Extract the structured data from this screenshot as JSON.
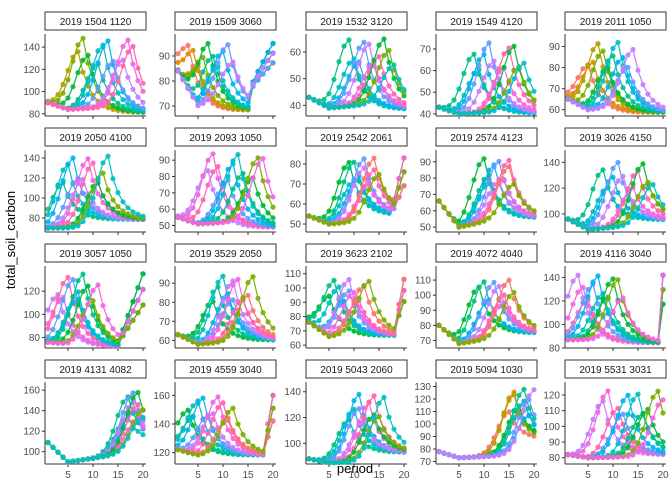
{
  "chart_data": {
    "type": "line",
    "xlabel": "period",
    "ylabel": "total_soil_carbon",
    "x_ticks": [
      5,
      10,
      15,
      20
    ],
    "x_range": [
      1,
      20
    ],
    "colors": [
      "#F8766D",
      "#DE8C00",
      "#B79F00",
      "#7CAE00",
      "#00BA38",
      "#00C08B",
      "#00BFC4",
      "#00B4F0",
      "#619CFF",
      "#C77CFF",
      "#F564E3",
      "#FF64B0"
    ],
    "panels": [
      {
        "title": "2019 1504 1120",
        "ylim": [
          78,
          150
        ],
        "yticks": [
          80,
          100,
          120,
          140
        ],
        "base": 90,
        "dip": 84,
        "amp": 148,
        "start": 7,
        "end": 18,
        "tail": 80,
        "pal": "warmcool",
        "recur": 0
      },
      {
        "title": "2019 1509 3060",
        "ylim": [
          66,
          98
        ],
        "yticks": [
          70,
          80,
          90
        ],
        "base": 84,
        "dip": 70,
        "amp": 95,
        "start": 3,
        "end": 12,
        "tail": 67,
        "pal": "warm",
        "recur": 16
      },
      {
        "title": "2019 1532 3120",
        "ylim": [
          36,
          66
        ],
        "yticks": [
          40,
          50,
          60
        ],
        "base": 43,
        "dip": 39,
        "amp": 65,
        "start": 9,
        "end": 18,
        "tail": 38,
        "pal": "cool",
        "recur": 0
      },
      {
        "title": "2019 1549 4120",
        "ylim": [
          39,
          76
        ],
        "yticks": [
          40,
          50,
          60,
          70
        ],
        "base": 43,
        "dip": 40,
        "amp": 73,
        "start": 8,
        "end": 18,
        "tail": 40,
        "pal": "cool",
        "recur": 0
      },
      {
        "title": "2019 2011 1050",
        "ylim": [
          57,
          95
        ],
        "yticks": [
          60,
          70,
          80,
          90
        ],
        "base": 65,
        "dip": 60,
        "amp": 92,
        "start": 5,
        "end": 14,
        "tail": 58,
        "pal": "warm",
        "recur": 0
      },
      {
        "title": "2019 2050 4100",
        "ylim": [
          66,
          146
        ],
        "yticks": [
          80,
          100,
          120,
          140
        ],
        "base": 70,
        "dip": 70,
        "amp": 142,
        "start": 4,
        "end": 13,
        "tail": 80,
        "pal": "cool",
        "recur": 0
      },
      {
        "title": "2019 2093 1050",
        "ylim": [
          46,
          95
        ],
        "yticks": [
          50,
          60,
          70,
          80,
          90
        ],
        "base": 55,
        "dip": 51,
        "amp": 94,
        "start": 7,
        "end": 18,
        "tail": 48,
        "pal": "pinkcool",
        "recur": 0
      },
      {
        "title": "2019 2542 2061",
        "ylim": [
          46,
          86
        ],
        "yticks": [
          50,
          60,
          70,
          80
        ],
        "base": 54,
        "dip": 50,
        "amp": 83,
        "start": 9,
        "end": 15,
        "tail": 55,
        "pal": "mixed",
        "recur": 18
      },
      {
        "title": "2019 2574 4123",
        "ylim": [
          47,
          96
        ],
        "yticks": [
          50,
          60,
          70,
          80,
          90
        ],
        "base": 66,
        "dip": 50,
        "amp": 92,
        "start": 10,
        "end": 16,
        "tail": 55,
        "pal": "mixed",
        "recur": 0
      },
      {
        "title": "2019 3026 4150",
        "ylim": [
          86,
          148
        ],
        "yticks": [
          100,
          120,
          140
        ],
        "base": 96,
        "dip": 88,
        "amp": 140,
        "start": 8,
        "end": 18,
        "tail": 96,
        "pal": "cool",
        "recur": 0
      },
      {
        "title": "2019 3057 1050",
        "ylim": [
          71,
          140
        ],
        "yticks": [
          80,
          100,
          120
        ],
        "base": 76,
        "dip": 74,
        "amp": 135,
        "start": 3,
        "end": 11,
        "tail": 72,
        "pal": "pinkcool",
        "recur": 16
      },
      {
        "title": "2019 3529 2050",
        "ylim": [
          56,
          98
        ],
        "yticks": [
          60,
          70,
          80,
          90
        ],
        "base": 63,
        "dip": 58,
        "amp": 94,
        "start": 8,
        "end": 16,
        "tail": 60,
        "pal": "mixed",
        "recur": 0
      },
      {
        "title": "2019 3623 2102",
        "ylim": [
          58,
          114
        ],
        "yticks": [
          60,
          70,
          80,
          90,
          100,
          110
        ],
        "base": 76,
        "dip": 66,
        "amp": 106,
        "start": 5,
        "end": 13,
        "tail": 66,
        "pal": "mixed",
        "recur": 19
      },
      {
        "title": "2019 4072 4040",
        "ylim": [
          65,
          118
        ],
        "yticks": [
          70,
          80,
          90,
          100,
          110
        ],
        "base": 80,
        "dip": 68,
        "amp": 110,
        "start": 9,
        "end": 16,
        "tail": 75,
        "pal": "mixed",
        "recur": 0
      },
      {
        "title": "2019 4116 3040",
        "ylim": [
          80,
          148
        ],
        "yticks": [
          80,
          100,
          120,
          140
        ],
        "base": 87,
        "dip": 87,
        "amp": 142,
        "start": 3,
        "end": 12,
        "tail": 84,
        "pal": "pinkcool",
        "recur": 20
      },
      {
        "title": "2019 4131 4082",
        "ylim": [
          88,
          166
        ],
        "yticks": [
          100,
          120,
          140,
          160
        ],
        "base": 109,
        "dip": 90,
        "amp": 158,
        "start": 17,
        "end": 20,
        "tail": 112,
        "pal": "cool",
        "recur": 0
      },
      {
        "title": "2019 4559 3040",
        "ylim": [
          112,
          168
        ],
        "yticks": [
          120,
          140,
          160
        ],
        "base": 122,
        "dip": 118,
        "amp": 160,
        "start": 3,
        "end": 12,
        "tail": 118,
        "pal": "mixed",
        "recur": 19
      },
      {
        "title": "2019 5043 2060",
        "ylim": [
          84,
          146
        ],
        "yticks": [
          100,
          120,
          140
        ],
        "base": 88,
        "dip": 85,
        "amp": 138,
        "start": 9,
        "end": 16,
        "tail": 94,
        "pal": "cool",
        "recur": 0
      },
      {
        "title": "2019 5094 1030",
        "ylim": [
          68,
          132
        ],
        "yticks": [
          70,
          80,
          90,
          100,
          110,
          120,
          130
        ],
        "base": 78,
        "dip": 73,
        "amp": 128,
        "start": 15,
        "end": 20,
        "tail": 90,
        "pal": "warm",
        "recur": 0
      },
      {
        "title": "2019 5531 3031",
        "ylim": [
          76,
          127
        ],
        "yticks": [
          80,
          90,
          100,
          110,
          120
        ],
        "base": 82,
        "dip": 80,
        "amp": 123,
        "start": 8,
        "end": 20,
        "tail": 82,
        "pal": "pinkcool",
        "recur": 0
      }
    ]
  }
}
